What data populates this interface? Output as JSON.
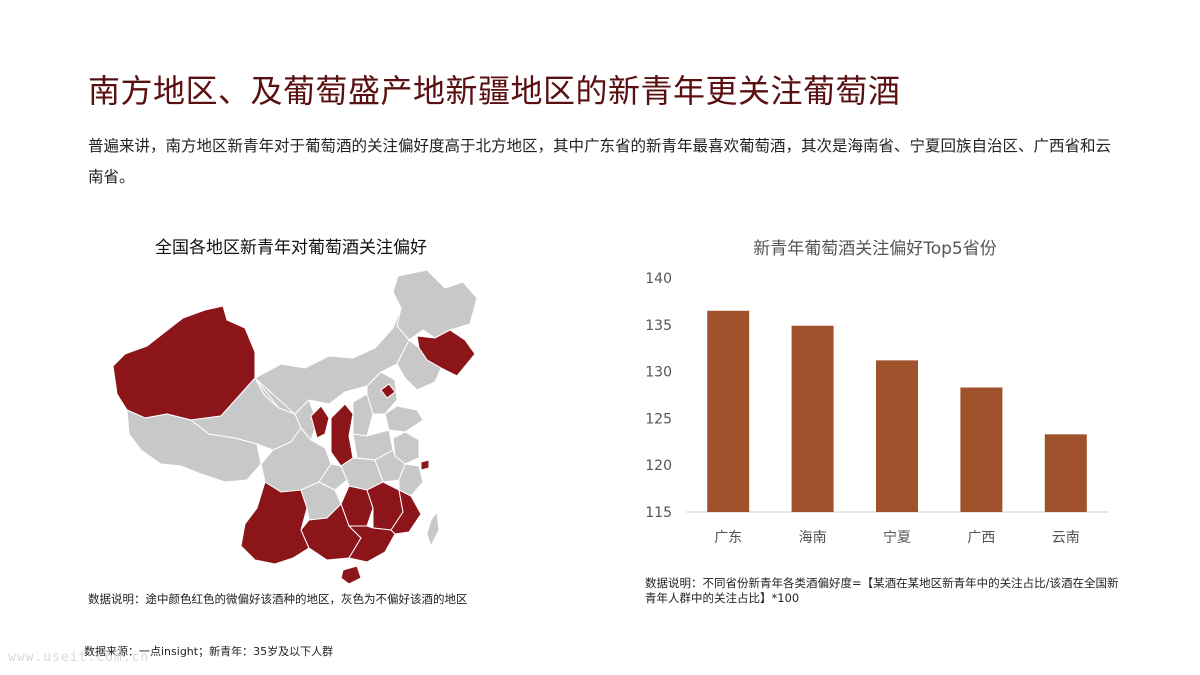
{
  "slide": {
    "title": "南方地区、及葡萄盛产地新疆地区的新青年更关注葡萄酒",
    "intro": "普遍来讲，南方地区新青年对于葡萄酒的关注偏好度高于北方地区，其中广东省的新青年最喜欢葡萄酒，其次是海南省、宁夏回族自治区、广西省和云南省。",
    "watermark": "www.useit.com.cn",
    "source": "数据来源：一点insight；新青年：35岁及以下人群"
  },
  "map": {
    "title": "全国各地区新青年对葡萄酒关注偏好",
    "note": "数据说明：途中颜色红色的微偏好该酒种的地区，灰色为不偏好该酒的地区",
    "colors": {
      "prefer": "#8b1519",
      "not_prefer": "#c8c8c8"
    }
  },
  "chart_data": {
    "type": "bar",
    "title": "新青年葡萄酒关注偏好Top5省份",
    "categories": [
      "广东",
      "海南",
      "宁夏",
      "广西",
      "云南"
    ],
    "values": [
      136.5,
      134.9,
      131.2,
      128.3,
      123.3
    ],
    "ylim": [
      115,
      140
    ],
    "yticks": [
      115,
      120,
      125,
      130,
      135,
      140
    ],
    "grid": false,
    "bar_color": "#a0522d",
    "note": "数据说明：不同省份新青年各类酒偏好度=【某酒在某地区新青年中的关注占比/该酒在全国新青年人群中的关注占比】*100"
  }
}
